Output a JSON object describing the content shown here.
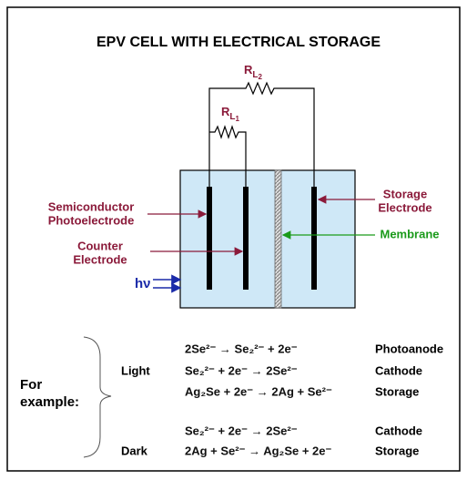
{
  "title": "EPV CELL WITH ELECTRICAL STORAGE",
  "resistors": [
    {
      "main": "R",
      "sub": "L",
      "index": "2"
    },
    {
      "main": "R",
      "sub": "L",
      "index": "1"
    }
  ],
  "labels": [
    {
      "lines": [
        "Semiconductor",
        "Photoelectrode"
      ]
    },
    {
      "lines": [
        "Counter",
        "Electrode"
      ]
    },
    {
      "lines": [
        "Storage",
        "Electrode"
      ]
    },
    {
      "lines": [
        "Membrane"
      ]
    },
    {
      "lines": [
        "hν"
      ]
    }
  ],
  "examples": {
    "intro": [
      "For",
      "example:"
    ],
    "groups": [
      {
        "condition": "Light",
        "reactions": [
          {
            "equation": "2Se²⁻ → Se₂²⁻ + 2e⁻",
            "role": "Photoanode"
          },
          {
            "equation": "Se₂²⁻ + 2e⁻ → 2Se²⁻",
            "role": "Cathode"
          },
          {
            "equation": "Ag₂Se + 2e⁻ → 2Ag + Se²⁻",
            "role": "Storage"
          }
        ]
      },
      {
        "condition": "Dark",
        "reactions": [
          {
            "equation": "Se₂²⁻ + 2e⁻ → 2Se²⁻",
            "role": "Cathode"
          },
          {
            "equation": "2Ag + Se²⁻ → Ag₂Se + 2e⁻",
            "role": "Storage"
          }
        ]
      }
    ]
  }
}
